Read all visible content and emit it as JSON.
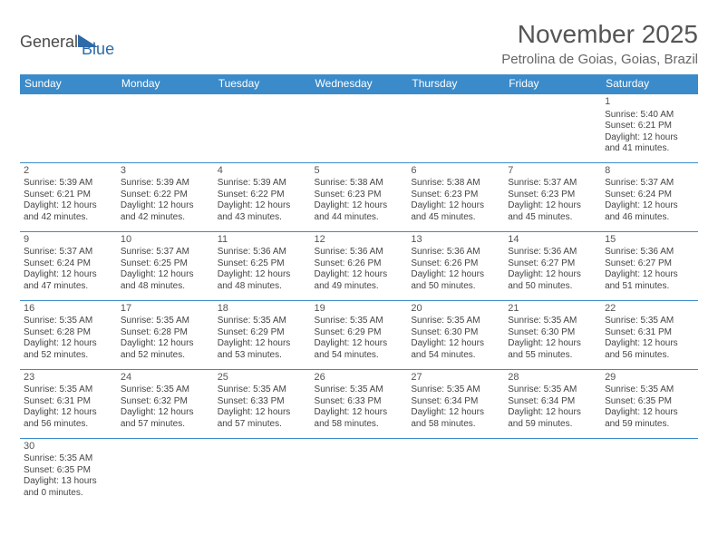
{
  "logo": {
    "word1": "General",
    "word2": "Blue"
  },
  "title": {
    "month": "November 2025",
    "location": "Petrolina de Goias, Goias, Brazil"
  },
  "colors": {
    "header_bg": "#3b8bca",
    "header_text": "#ffffff",
    "row_border": "#3b8bca"
  },
  "day_headers": [
    "Sunday",
    "Monday",
    "Tuesday",
    "Wednesday",
    "Thursday",
    "Friday",
    "Saturday"
  ],
  "weeks": [
    [
      null,
      null,
      null,
      null,
      null,
      null,
      {
        "n": "1",
        "sunrise": "Sunrise: 5:40 AM",
        "sunset": "Sunset: 6:21 PM",
        "daylight": "Daylight: 12 hours and 41 minutes."
      }
    ],
    [
      {
        "n": "2",
        "sunrise": "Sunrise: 5:39 AM",
        "sunset": "Sunset: 6:21 PM",
        "daylight": "Daylight: 12 hours and 42 minutes."
      },
      {
        "n": "3",
        "sunrise": "Sunrise: 5:39 AM",
        "sunset": "Sunset: 6:22 PM",
        "daylight": "Daylight: 12 hours and 42 minutes."
      },
      {
        "n": "4",
        "sunrise": "Sunrise: 5:39 AM",
        "sunset": "Sunset: 6:22 PM",
        "daylight": "Daylight: 12 hours and 43 minutes."
      },
      {
        "n": "5",
        "sunrise": "Sunrise: 5:38 AM",
        "sunset": "Sunset: 6:23 PM",
        "daylight": "Daylight: 12 hours and 44 minutes."
      },
      {
        "n": "6",
        "sunrise": "Sunrise: 5:38 AM",
        "sunset": "Sunset: 6:23 PM",
        "daylight": "Daylight: 12 hours and 45 minutes."
      },
      {
        "n": "7",
        "sunrise": "Sunrise: 5:37 AM",
        "sunset": "Sunset: 6:23 PM",
        "daylight": "Daylight: 12 hours and 45 minutes."
      },
      {
        "n": "8",
        "sunrise": "Sunrise: 5:37 AM",
        "sunset": "Sunset: 6:24 PM",
        "daylight": "Daylight: 12 hours and 46 minutes."
      }
    ],
    [
      {
        "n": "9",
        "sunrise": "Sunrise: 5:37 AM",
        "sunset": "Sunset: 6:24 PM",
        "daylight": "Daylight: 12 hours and 47 minutes."
      },
      {
        "n": "10",
        "sunrise": "Sunrise: 5:37 AM",
        "sunset": "Sunset: 6:25 PM",
        "daylight": "Daylight: 12 hours and 48 minutes."
      },
      {
        "n": "11",
        "sunrise": "Sunrise: 5:36 AM",
        "sunset": "Sunset: 6:25 PM",
        "daylight": "Daylight: 12 hours and 48 minutes."
      },
      {
        "n": "12",
        "sunrise": "Sunrise: 5:36 AM",
        "sunset": "Sunset: 6:26 PM",
        "daylight": "Daylight: 12 hours and 49 minutes."
      },
      {
        "n": "13",
        "sunrise": "Sunrise: 5:36 AM",
        "sunset": "Sunset: 6:26 PM",
        "daylight": "Daylight: 12 hours and 50 minutes."
      },
      {
        "n": "14",
        "sunrise": "Sunrise: 5:36 AM",
        "sunset": "Sunset: 6:27 PM",
        "daylight": "Daylight: 12 hours and 50 minutes."
      },
      {
        "n": "15",
        "sunrise": "Sunrise: 5:36 AM",
        "sunset": "Sunset: 6:27 PM",
        "daylight": "Daylight: 12 hours and 51 minutes."
      }
    ],
    [
      {
        "n": "16",
        "sunrise": "Sunrise: 5:35 AM",
        "sunset": "Sunset: 6:28 PM",
        "daylight": "Daylight: 12 hours and 52 minutes."
      },
      {
        "n": "17",
        "sunrise": "Sunrise: 5:35 AM",
        "sunset": "Sunset: 6:28 PM",
        "daylight": "Daylight: 12 hours and 52 minutes."
      },
      {
        "n": "18",
        "sunrise": "Sunrise: 5:35 AM",
        "sunset": "Sunset: 6:29 PM",
        "daylight": "Daylight: 12 hours and 53 minutes."
      },
      {
        "n": "19",
        "sunrise": "Sunrise: 5:35 AM",
        "sunset": "Sunset: 6:29 PM",
        "daylight": "Daylight: 12 hours and 54 minutes."
      },
      {
        "n": "20",
        "sunrise": "Sunrise: 5:35 AM",
        "sunset": "Sunset: 6:30 PM",
        "daylight": "Daylight: 12 hours and 54 minutes."
      },
      {
        "n": "21",
        "sunrise": "Sunrise: 5:35 AM",
        "sunset": "Sunset: 6:30 PM",
        "daylight": "Daylight: 12 hours and 55 minutes."
      },
      {
        "n": "22",
        "sunrise": "Sunrise: 5:35 AM",
        "sunset": "Sunset: 6:31 PM",
        "daylight": "Daylight: 12 hours and 56 minutes."
      }
    ],
    [
      {
        "n": "23",
        "sunrise": "Sunrise: 5:35 AM",
        "sunset": "Sunset: 6:31 PM",
        "daylight": "Daylight: 12 hours and 56 minutes."
      },
      {
        "n": "24",
        "sunrise": "Sunrise: 5:35 AM",
        "sunset": "Sunset: 6:32 PM",
        "daylight": "Daylight: 12 hours and 57 minutes."
      },
      {
        "n": "25",
        "sunrise": "Sunrise: 5:35 AM",
        "sunset": "Sunset: 6:33 PM",
        "daylight": "Daylight: 12 hours and 57 minutes."
      },
      {
        "n": "26",
        "sunrise": "Sunrise: 5:35 AM",
        "sunset": "Sunset: 6:33 PM",
        "daylight": "Daylight: 12 hours and 58 minutes."
      },
      {
        "n": "27",
        "sunrise": "Sunrise: 5:35 AM",
        "sunset": "Sunset: 6:34 PM",
        "daylight": "Daylight: 12 hours and 58 minutes."
      },
      {
        "n": "28",
        "sunrise": "Sunrise: 5:35 AM",
        "sunset": "Sunset: 6:34 PM",
        "daylight": "Daylight: 12 hours and 59 minutes."
      },
      {
        "n": "29",
        "sunrise": "Sunrise: 5:35 AM",
        "sunset": "Sunset: 6:35 PM",
        "daylight": "Daylight: 12 hours and 59 minutes."
      }
    ],
    [
      {
        "n": "30",
        "sunrise": "Sunrise: 5:35 AM",
        "sunset": "Sunset: 6:35 PM",
        "daylight": "Daylight: 13 hours and 0 minutes."
      },
      null,
      null,
      null,
      null,
      null,
      null
    ]
  ]
}
